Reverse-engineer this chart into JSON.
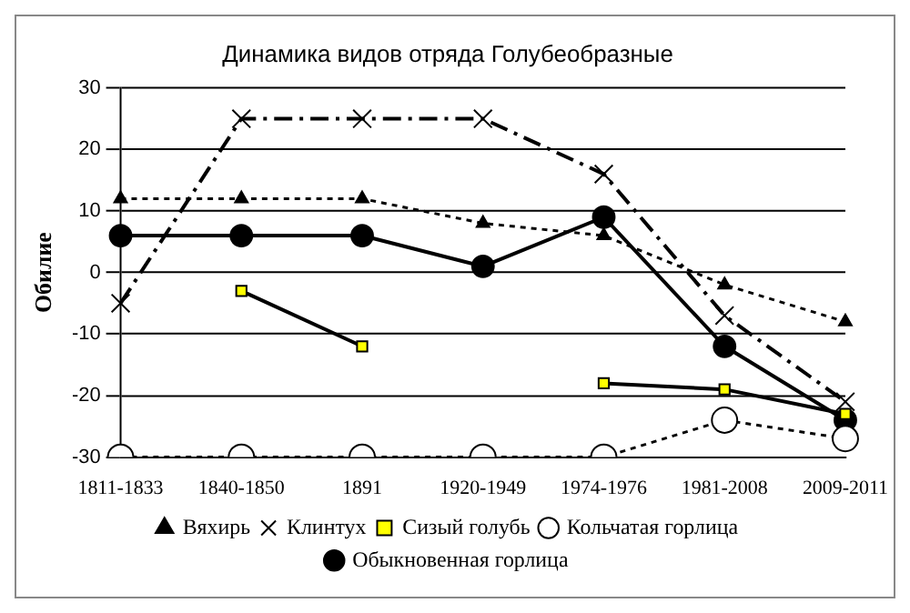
{
  "chart_data": {
    "type": "line",
    "title": "Динамика видов отряда Голубеобразные",
    "ylabel": "Обилие",
    "categories": [
      "1811-1833",
      "1840-1850",
      "1891",
      "1920-1949",
      "1974-1976",
      "1981-2008",
      "2009-2011"
    ],
    "series": [
      {
        "name": "Вяхирь",
        "color": "#000000",
        "marker": "triangle",
        "line_style": "dotted",
        "values": [
          12,
          12,
          12,
          8,
          6,
          -2,
          -8
        ]
      },
      {
        "name": "Клинтух",
        "color": "#000000",
        "marker": "cross",
        "line_style": "dashed",
        "values": [
          -5,
          25,
          25,
          25,
          16,
          -7,
          -21
        ]
      },
      {
        "name": "Сизый голубь",
        "color": "#ffff00",
        "marker": "square",
        "line_style": "solid",
        "values": [
          null,
          -3,
          -12,
          null,
          -18,
          -19,
          -23
        ]
      },
      {
        "name": "Кольчатая горлица",
        "color": "#ffffff",
        "marker": "circle",
        "line_style": "dotted",
        "values": [
          -30,
          -30,
          -30,
          -30,
          -30,
          -24,
          -27
        ]
      },
      {
        "name": "Обыкновенная горлица",
        "color": "#000000",
        "marker": "circle",
        "line_style": "solid",
        "values": [
          6,
          6,
          6,
          1,
          9,
          -12,
          -24
        ]
      }
    ],
    "ylim": [
      -30,
      30
    ],
    "yticks": [
      -30,
      -20,
      -10,
      0,
      10,
      20,
      30
    ],
    "grid": "y",
    "legend": "bottom"
  }
}
